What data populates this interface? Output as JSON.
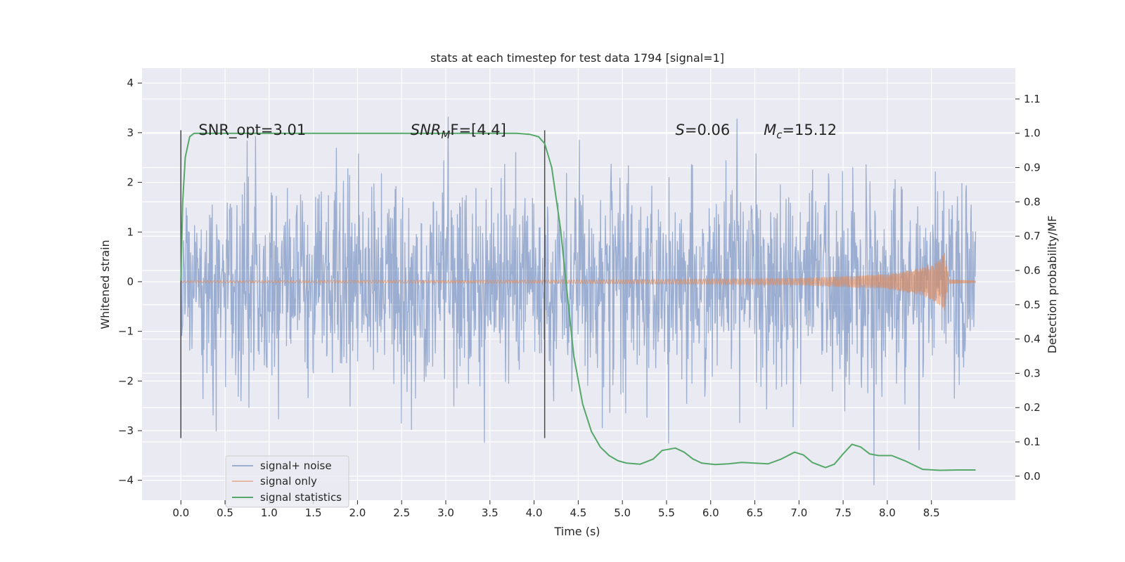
{
  "chart_data": {
    "type": "line",
    "title": "stats at each timestep for test data 1794 [signal=1]",
    "xlabel": "Time (s)",
    "ylabel": "Whitened strain",
    "ylabel_right": "Detection probability/MF",
    "xlim": [
      -0.44,
      9.45
    ],
    "ylim": [
      -4.4,
      4.3
    ],
    "ylim_right": [
      -0.07,
      1.19
    ],
    "x_ticks": [
      "0.0",
      "0.5",
      "1.0",
      "1.5",
      "2.0",
      "2.5",
      "3.0",
      "3.5",
      "4.0",
      "4.5",
      "5.0",
      "5.5",
      "6.0",
      "6.5",
      "7.0",
      "7.5",
      "8.0",
      "8.5"
    ],
    "x_tick_values": [
      0,
      0.5,
      1,
      1.5,
      2,
      2.5,
      3,
      3.5,
      4,
      4.5,
      5,
      5.5,
      6,
      6.5,
      7,
      7.5,
      8,
      8.5
    ],
    "y_ticks": [
      "4",
      "3",
      "2",
      "1",
      "0",
      "−1",
      "−2",
      "−3",
      "−4"
    ],
    "y_tick_values": [
      4,
      3,
      2,
      1,
      0,
      -1,
      -2,
      -3,
      -4
    ],
    "y_right_ticks": [
      "1.1",
      "1.0",
      "0.9",
      "0.8",
      "0.7",
      "0.6",
      "0.5",
      "0.4",
      "0.3",
      "0.2",
      "0.1",
      "0.0"
    ],
    "y_right_tick_values": [
      1.1,
      1.0,
      0.9,
      0.8,
      0.7,
      0.6,
      0.5,
      0.4,
      0.3,
      0.2,
      0.1,
      0.0
    ],
    "annotations": [
      {
        "text": "SNR_opt=3.01",
        "x": 0.2,
        "y": 3.0
      },
      {
        "text": "SNR_M F=[4.4]",
        "x": 2.6,
        "y": 3.0
      },
      {
        "text": "S=0.06",
        "x": 5.6,
        "y": 3.0
      },
      {
        "text": "M_c=15.12",
        "x": 6.6,
        "y": 3.0
      }
    ],
    "vertical_lines": [
      {
        "x": 0.0,
        "y_range": [
          -3.15,
          3.05
        ]
      },
      {
        "x": 4.12,
        "y_range": [
          -3.15,
          3.05
        ]
      }
    ],
    "series": [
      {
        "name": "signal+ noise",
        "color": "#4c72b0",
        "axis": "left",
        "description": "whitened noisy strain, roughly Gaussian with sigma ~1, x from 0 to 9.0",
        "sigma": 1.0,
        "x_range": [
          0.0,
          9.0
        ]
      },
      {
        "name": "signal only",
        "color": "#dd8452",
        "axis": "left",
        "description": "chirp waveform growing in amplitude, merger near 8.65 s",
        "amplitude_points": [
          [
            0.0,
            0.02
          ],
          [
            4.0,
            0.03
          ],
          [
            6.0,
            0.05
          ],
          [
            7.0,
            0.07
          ],
          [
            8.0,
            0.15
          ],
          [
            8.4,
            0.28
          ],
          [
            8.6,
            0.48
          ],
          [
            8.65,
            0.6
          ],
          [
            8.7,
            0.05
          ],
          [
            9.0,
            0.02
          ]
        ]
      },
      {
        "name": "signal statistics",
        "color": "#55a868",
        "axis": "right",
        "x": [
          0.0,
          0.02,
          0.05,
          0.1,
          0.15,
          0.2,
          0.3,
          0.5,
          1.0,
          2.0,
          3.0,
          3.5,
          3.8,
          3.95,
          4.05,
          4.12,
          4.2,
          4.3,
          4.38,
          4.45,
          4.55,
          4.65,
          4.75,
          4.85,
          4.95,
          5.05,
          5.2,
          5.35,
          5.45,
          5.6,
          5.7,
          5.8,
          5.9,
          6.05,
          6.2,
          6.35,
          6.5,
          6.65,
          6.8,
          6.95,
          7.05,
          7.15,
          7.3,
          7.4,
          7.5,
          7.6,
          7.7,
          7.8,
          7.9,
          8.05,
          8.2,
          8.4,
          8.6,
          8.8,
          9.0
        ],
        "y": [
          0.57,
          0.8,
          0.93,
          0.99,
          1.0,
          1.0,
          1.0,
          1.0,
          1.0,
          1.0,
          1.0,
          1.0,
          1.0,
          0.997,
          0.99,
          0.97,
          0.9,
          0.72,
          0.52,
          0.35,
          0.21,
          0.13,
          0.085,
          0.06,
          0.045,
          0.038,
          0.035,
          0.05,
          0.075,
          0.082,
          0.07,
          0.05,
          0.038,
          0.034,
          0.036,
          0.04,
          0.038,
          0.036,
          0.05,
          0.07,
          0.062,
          0.04,
          0.025,
          0.035,
          0.065,
          0.093,
          0.085,
          0.065,
          0.06,
          0.06,
          0.045,
          0.02,
          0.017,
          0.018,
          0.018
        ]
      }
    ],
    "legend": {
      "location": "lower-left",
      "entries": [
        "signal+ noise",
        "signal only",
        "signal statistics"
      ]
    },
    "grid": true
  }
}
